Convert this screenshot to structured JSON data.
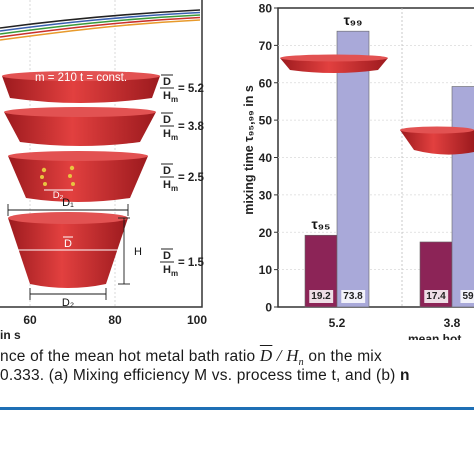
{
  "left_panel": {
    "x_axis_unit": "in s",
    "x_ticks": [
      "60",
      "80",
      "100"
    ],
    "curve_colors": [
      "#e89a2b",
      "#c9302c",
      "#3a9a3a",
      "#3a5fb0",
      "#222222"
    ],
    "vessels": [
      {
        "label": "m = 210 t = const.",
        "ratio_value": "= 5.2"
      },
      {
        "ratio_value": "= 3.8"
      },
      {
        "label": "D₂",
        "ratio_value": "= 2.5"
      },
      {
        "dims": [
          "D₁",
          "D",
          "H",
          "D₂"
        ],
        "ratio_value": "= 1.5"
      }
    ],
    "ratio_num": "D",
    "ratio_den": "H",
    "ratio_den_sub": "m",
    "vessel_color": "#c8202a"
  },
  "right_panel": {
    "chart_data": {
      "type": "bar",
      "ylabel": "mixing time τ₉₅,₉₉ in s",
      "xlabel": "mean hot",
      "ylim": [
        0,
        80
      ],
      "y_ticks": [
        "0",
        "10",
        "20",
        "30",
        "40",
        "50",
        "60",
        "70",
        "80"
      ],
      "categories": [
        "5.2",
        "3.8"
      ],
      "series": [
        {
          "name": "τ₉₅",
          "values": [
            19.2,
            17.4
          ],
          "color": "#8c2457"
        },
        {
          "name": "τ₉₉",
          "values": [
            73.8,
            59
          ],
          "color": "#a9a9d9"
        }
      ],
      "value_labels": [
        [
          "19.2",
          "73.8"
        ],
        [
          "17.4",
          "59"
        ]
      ],
      "series_labels": [
        "τ₉₅",
        "τ₉₉"
      ]
    }
  },
  "caption": {
    "line1_a": "nce of the mean hot metal bath ratio",
    "line1_num": "D",
    "line1_den": "H",
    "line1_den_sub": "n",
    "line1_b": "on the mix",
    "line2_a": "0.333. (a) Mixing efficiency M vs. process time t, and (b)",
    "line2_bold": "n"
  },
  "rule_color": "#1e6fb5"
}
